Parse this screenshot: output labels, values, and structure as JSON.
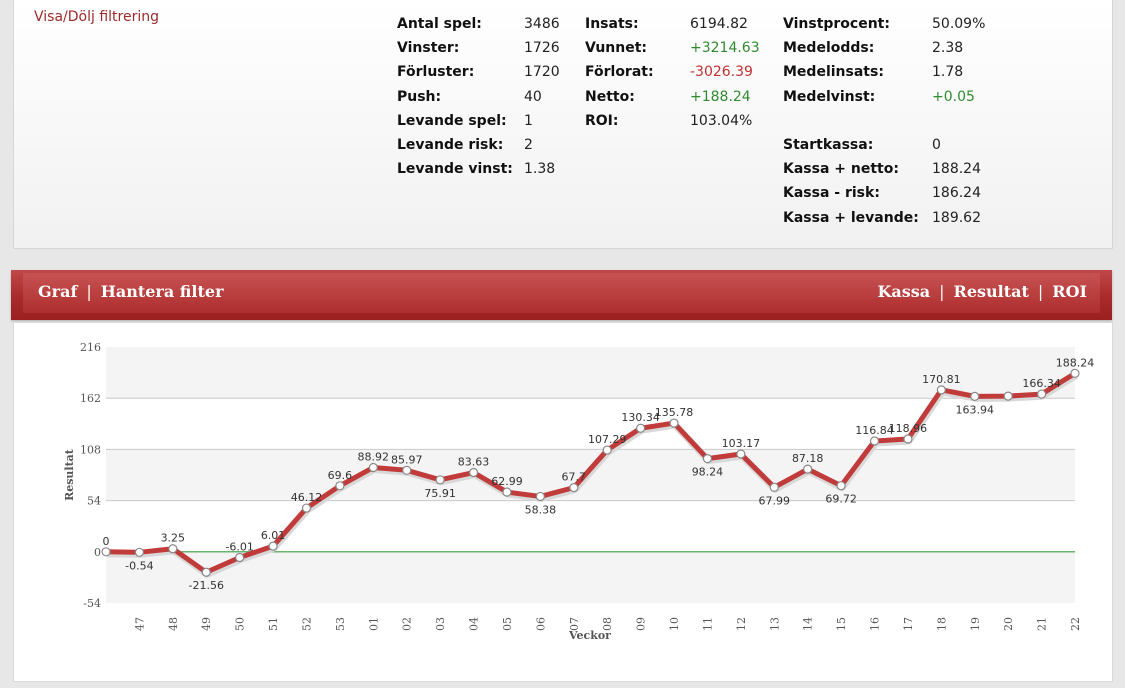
{
  "filter_toggle": "Visa/Dölj filtrering",
  "stats": {
    "col1": [
      {
        "label": "Antal spel:",
        "value": "3486"
      },
      {
        "label": "Vinster:",
        "value": "1726"
      },
      {
        "label": "Förluster:",
        "value": "1720"
      },
      {
        "label": "Push:",
        "value": "40"
      },
      {
        "label": "Levande spel:",
        "value": "1"
      },
      {
        "label": "Levande risk:",
        "value": "2"
      },
      {
        "label": "Levande vinst:",
        "value": "1.38"
      }
    ],
    "col2": [
      {
        "label": "Insats:",
        "value": "6194.82"
      },
      {
        "label": "Vunnet:",
        "value": "+3214.63"
      },
      {
        "label": "Förlorat:",
        "value": "-3026.39"
      },
      {
        "label": "Netto:",
        "value": "+188.24"
      },
      {
        "label": "ROI:",
        "value": "103.04%"
      }
    ],
    "col3a": [
      {
        "label": "Vinstprocent:",
        "value": "50.09%"
      },
      {
        "label": "Medelodds:",
        "value": "2.38"
      },
      {
        "label": "Medelinsats:",
        "value": "1.78"
      },
      {
        "label": "Medelvinst:",
        "value": "+0.05"
      }
    ],
    "col3b": [
      {
        "label": "Startkassa:",
        "value": "0"
      },
      {
        "label": "Kassa + netto:",
        "value": "188.24"
      },
      {
        "label": "Kassa - risk:",
        "value": "186.24"
      },
      {
        "label": "Kassa + levande:",
        "value": "189.62"
      }
    ]
  },
  "graph_header": {
    "graf": "Graf",
    "hantera": "Hantera filter",
    "kassa": "Kassa",
    "resultat": "Resultat",
    "roi": "ROI",
    "sep": "|"
  },
  "colors": {
    "line": "#c23b3b",
    "zero_line": "#3c9a3c",
    "header": "#a92a2a",
    "positive": "#2f8a2f",
    "negative": "#c22f2f"
  },
  "chart_data": {
    "type": "line",
    "xlabel": "Veckor",
    "ylabel": "Resultat",
    "ylim": [
      -54,
      216
    ],
    "yticks": [
      -54,
      0,
      54,
      108,
      162,
      216
    ],
    "categories": [
      "",
      "47",
      "48",
      "49",
      "50",
      "51",
      "52",
      "53",
      "01",
      "02",
      "03",
      "04",
      "05",
      "06",
      "07",
      "08",
      "09",
      "10",
      "11",
      "12",
      "13",
      "14",
      "15",
      "16",
      "17",
      "18",
      "19",
      "20",
      "21",
      "22"
    ],
    "values": [
      0,
      -0.54,
      3.25,
      -21.56,
      -6.01,
      6.01,
      46.12,
      69.6,
      88.92,
      85.97,
      75.91,
      83.63,
      62.99,
      58.38,
      67.7,
      107.29,
      130.34,
      135.78,
      98.24,
      103.17,
      67.99,
      87.18,
      69.72,
      116.84,
      118.96,
      170.81,
      163.94,
      164.22,
      166.34,
      188.24
    ],
    "data_labels": [
      "0",
      "-0.54",
      "3.25",
      "-21.56",
      "-6.01",
      "6.01",
      "46.12",
      "69.6",
      "88.92",
      "85.97",
      "75.91",
      "83.63",
      "62.99",
      "58.38",
      "67.7",
      "107.29",
      "130.34",
      "135.78",
      "98.24",
      "103.17",
      "67.99",
      "87.18",
      "69.72",
      "116.84",
      "118.96",
      "170.81",
      "163.94",
      "",
      "166.34",
      "188.24"
    ],
    "grid": true,
    "zero_line": true
  }
}
